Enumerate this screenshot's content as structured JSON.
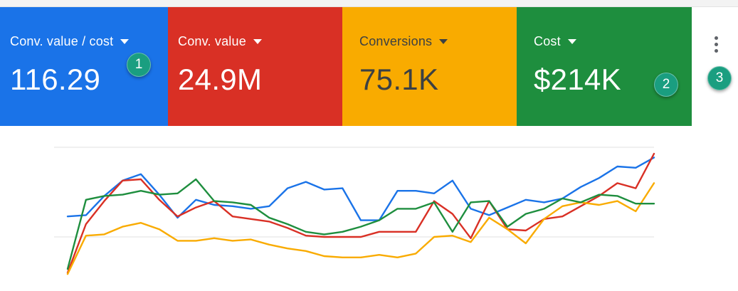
{
  "colors": {
    "blue": "#1a73e8",
    "red": "#d93025",
    "yellow": "#f9ab00",
    "green": "#1e8e3e",
    "badge": "#1a9e80"
  },
  "cards": [
    {
      "label": "Conv. value / cost",
      "value": "116.29",
      "color": "#1a73e8",
      "text_color": "#ffffff",
      "icon": "caret-down-icon"
    },
    {
      "label": "Conv. value",
      "value": "24.9M",
      "color": "#d93025",
      "text_color": "#ffffff",
      "icon": "caret-down-icon"
    },
    {
      "label": "Conversions",
      "value": "75.1K",
      "color": "#f9ab00",
      "text_color": "#3c4043",
      "icon": "caret-down-icon"
    },
    {
      "label": "Cost",
      "value": "$214K",
      "color": "#1e8e3e",
      "text_color": "#ffffff",
      "icon": "caret-down-icon"
    }
  ],
  "badges": [
    "1",
    "2",
    "3"
  ],
  "more_menu": {
    "icon": "more-vert-icon"
  },
  "chart_data": {
    "type": "line",
    "grid": true,
    "legend": "none",
    "x": [
      0,
      1,
      2,
      3,
      4,
      5,
      6,
      7,
      8,
      9,
      10,
      11,
      12,
      13,
      14,
      15,
      16,
      17,
      18,
      19,
      20,
      21,
      22,
      23,
      24,
      25,
      26,
      27,
      28,
      29,
      30,
      31,
      32
    ],
    "series": [
      {
        "color": "#1a73e8",
        "values": [
          46,
          47,
          62,
          74,
          79,
          63,
          45,
          59,
          55,
          54,
          52,
          54,
          68,
          73,
          67,
          68,
          43,
          43,
          66,
          66,
          64,
          74,
          52,
          47,
          53,
          59,
          57,
          60,
          69,
          76,
          85,
          84,
          92
        ]
      },
      {
        "color": "#d93025",
        "values": [
          2,
          40,
          58,
          74,
          75,
          59,
          46,
          53,
          58,
          46,
          44,
          42,
          37,
          31,
          30,
          30,
          30,
          34,
          34,
          34,
          58,
          48,
          29,
          58,
          36,
          35,
          44,
          46,
          54,
          62,
          72,
          68,
          95
        ]
      },
      {
        "color": "#f9ab00",
        "values": [
          1,
          31,
          32,
          38,
          41,
          36,
          27,
          27,
          29,
          27,
          28,
          24,
          21,
          19,
          15,
          14,
          14,
          16,
          14,
          17,
          30,
          31,
          26,
          45,
          36,
          25,
          44,
          54,
          57,
          55,
          58,
          50,
          72
        ]
      },
      {
        "color": "#1e8e3e",
        "values": [
          5,
          59,
          62,
          63,
          66,
          63,
          64,
          75,
          58,
          57,
          55,
          45,
          40,
          34,
          32,
          34,
          38,
          43,
          52,
          52,
          57,
          34,
          57,
          58,
          38,
          48,
          52,
          60,
          57,
          63,
          62,
          56,
          56
        ]
      }
    ],
    "ylim": [
      0,
      100
    ],
    "gridlines": [
      30,
      100
    ]
  }
}
